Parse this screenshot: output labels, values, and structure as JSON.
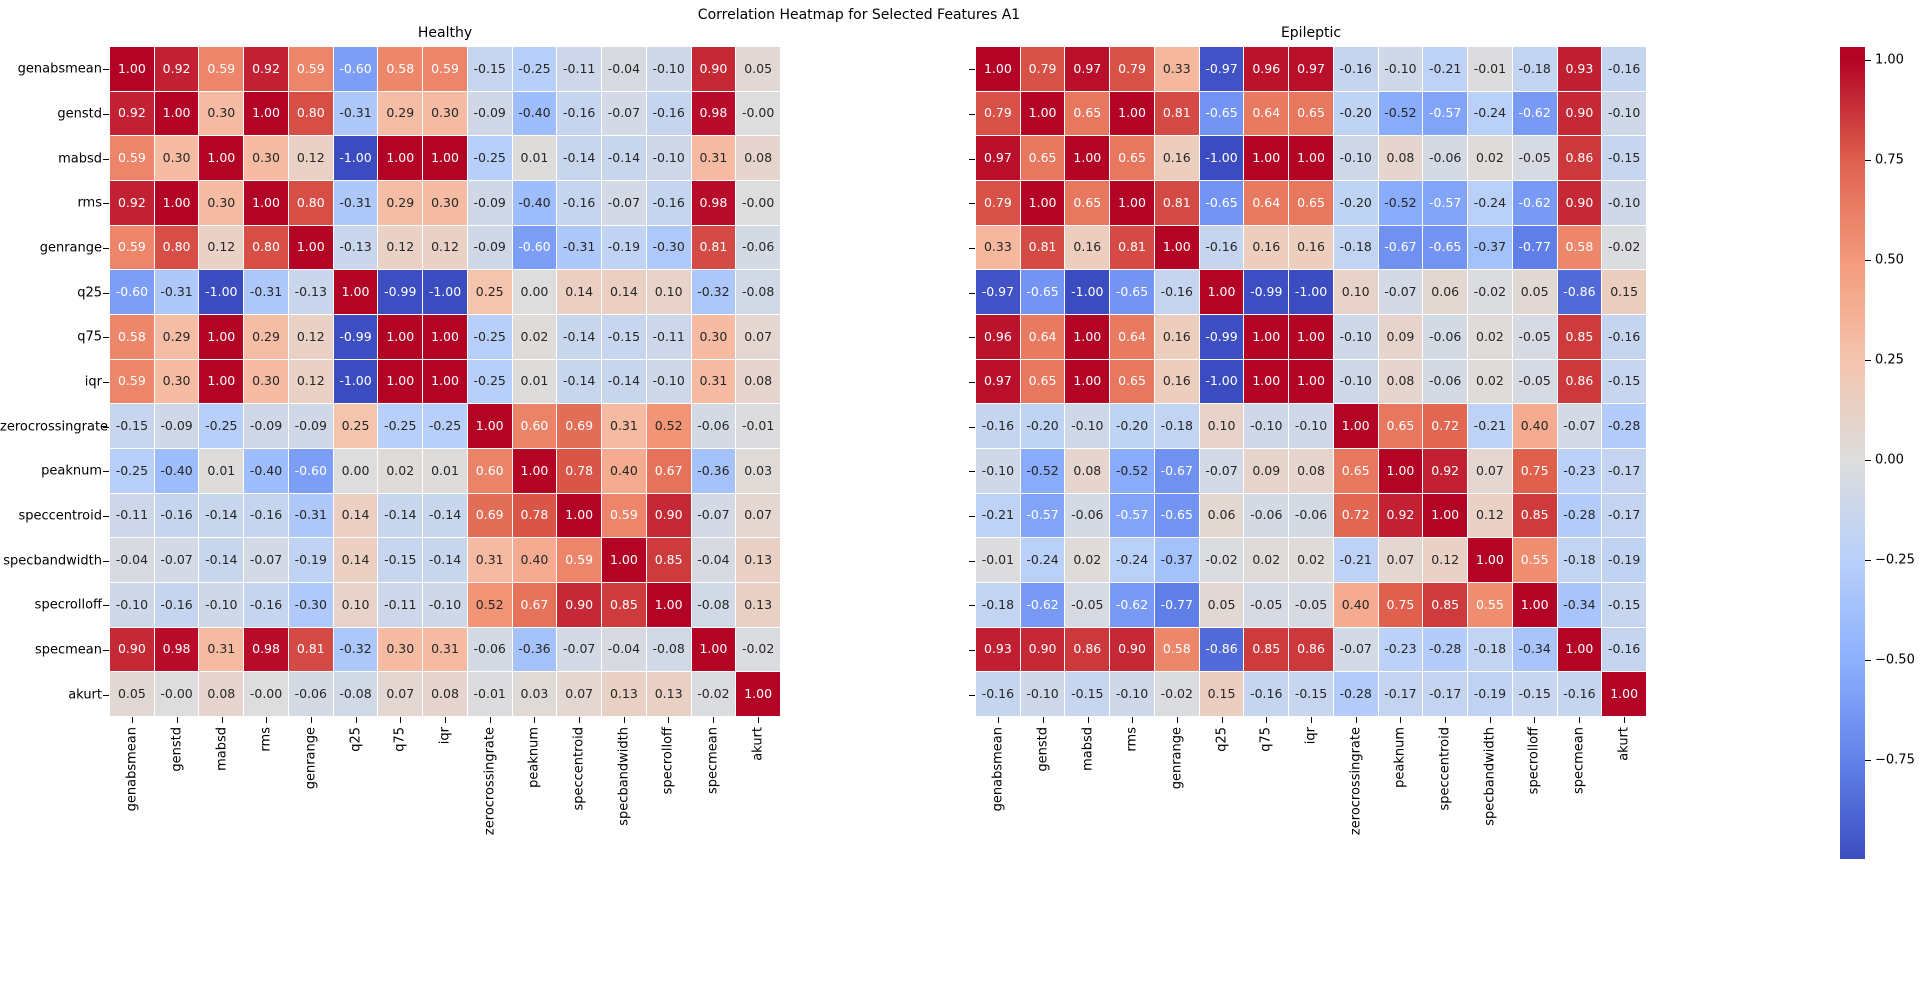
{
  "figure": {
    "title": "Correlation Heatmap for Selected Features A1"
  },
  "panels": [
    {
      "title": "Healthy"
    },
    {
      "title": "Epileptic"
    }
  ],
  "features": [
    "genabsmean",
    "genstd",
    "mabsd",
    "rms",
    "genrange",
    "q25",
    "q75",
    "iqr",
    "zerocrossingrate",
    "peaknum",
    "speccentroid",
    "specbandwidth",
    "specrolloff",
    "specmean",
    "akurt"
  ],
  "colors": {
    "background": "#ffffff",
    "cmap_name": "coolwarm",
    "cmap_max": "#b40426",
    "cmap_mid": "#dddddd",
    "cmap_min": "#3b4cc0",
    "annotation_dark": "#262626",
    "annotation_light": "#ffffff"
  },
  "colorbar": {
    "tick_values": [
      1.0,
      0.75,
      0.5,
      0.25,
      0.0,
      -0.25,
      -0.5,
      -0.75
    ],
    "tick_labels": [
      "1.00",
      "0.75",
      "0.50",
      "0.25",
      "0.00",
      "−0.25",
      "−0.50",
      "−0.75"
    ]
  },
  "chart_data": [
    {
      "type": "heatmap",
      "title": "Healthy",
      "colormap": "coolwarm",
      "vmin": -1,
      "vmax": 1,
      "annotation_format": ".2f",
      "labels": [
        "genabsmean",
        "genstd",
        "mabsd",
        "rms",
        "genrange",
        "q25",
        "q75",
        "iqr",
        "zerocrossingrate",
        "peaknum",
        "speccentroid",
        "specbandwidth",
        "specrolloff",
        "specmean",
        "akurt"
      ],
      "values": [
        [
          1.0,
          0.92,
          0.59,
          0.92,
          0.59,
          -0.6,
          0.58,
          0.59,
          -0.15,
          -0.25,
          -0.11,
          -0.04,
          -0.1,
          0.9,
          0.05
        ],
        [
          0.92,
          1.0,
          0.3,
          1.0,
          0.8,
          -0.31,
          0.29,
          0.3,
          -0.09,
          -0.4,
          -0.16,
          -0.07,
          -0.16,
          0.98,
          -0.0
        ],
        [
          0.59,
          0.3,
          1.0,
          0.3,
          0.12,
          -1.0,
          1.0,
          1.0,
          -0.25,
          0.01,
          -0.14,
          -0.14,
          -0.1,
          0.31,
          0.08
        ],
        [
          0.92,
          1.0,
          0.3,
          1.0,
          0.8,
          -0.31,
          0.29,
          0.3,
          -0.09,
          -0.4,
          -0.16,
          -0.07,
          -0.16,
          0.98,
          -0.0
        ],
        [
          0.59,
          0.8,
          0.12,
          0.8,
          1.0,
          -0.13,
          0.12,
          0.12,
          -0.09,
          -0.6,
          -0.31,
          -0.19,
          -0.3,
          0.81,
          -0.06
        ],
        [
          -0.6,
          -0.31,
          -1.0,
          -0.31,
          -0.13,
          1.0,
          -0.99,
          -1.0,
          0.25,
          0.0,
          0.14,
          0.14,
          0.1,
          -0.32,
          -0.08
        ],
        [
          0.58,
          0.29,
          1.0,
          0.29,
          0.12,
          -0.99,
          1.0,
          1.0,
          -0.25,
          0.02,
          -0.14,
          -0.15,
          -0.11,
          0.3,
          0.07
        ],
        [
          0.59,
          0.3,
          1.0,
          0.3,
          0.12,
          -1.0,
          1.0,
          1.0,
          -0.25,
          0.01,
          -0.14,
          -0.14,
          -0.1,
          0.31,
          0.08
        ],
        [
          -0.15,
          -0.09,
          -0.25,
          -0.09,
          -0.09,
          0.25,
          -0.25,
          -0.25,
          1.0,
          0.6,
          0.69,
          0.31,
          0.52,
          -0.06,
          -0.01
        ],
        [
          -0.25,
          -0.4,
          0.01,
          -0.4,
          -0.6,
          0.0,
          0.02,
          0.01,
          0.6,
          1.0,
          0.78,
          0.4,
          0.67,
          -0.36,
          0.03
        ],
        [
          -0.11,
          -0.16,
          -0.14,
          -0.16,
          -0.31,
          0.14,
          -0.14,
          -0.14,
          0.69,
          0.78,
          1.0,
          0.59,
          0.9,
          -0.07,
          0.07
        ],
        [
          -0.04,
          -0.07,
          -0.14,
          -0.07,
          -0.19,
          0.14,
          -0.15,
          -0.14,
          0.31,
          0.4,
          0.59,
          1.0,
          0.85,
          -0.04,
          0.13
        ],
        [
          -0.1,
          -0.16,
          -0.1,
          -0.16,
          -0.3,
          0.1,
          -0.11,
          -0.1,
          0.52,
          0.67,
          0.9,
          0.85,
          1.0,
          -0.08,
          0.13
        ],
        [
          0.9,
          0.98,
          0.31,
          0.98,
          0.81,
          -0.32,
          0.3,
          0.31,
          -0.06,
          -0.36,
          -0.07,
          -0.04,
          -0.08,
          1.0,
          -0.02
        ],
        [
          0.05,
          -0.0,
          0.08,
          -0.0,
          -0.06,
          -0.08,
          0.07,
          0.08,
          -0.01,
          0.03,
          0.07,
          0.13,
          0.13,
          -0.02,
          1.0
        ]
      ]
    },
    {
      "type": "heatmap",
      "title": "Epileptic",
      "colormap": "coolwarm",
      "vmin": -1,
      "vmax": 1,
      "annotation_format": ".2f",
      "labels": [
        "genabsmean",
        "genstd",
        "mabsd",
        "rms",
        "genrange",
        "q25",
        "q75",
        "iqr",
        "zerocrossingrate",
        "peaknum",
        "speccentroid",
        "specbandwidth",
        "specrolloff",
        "specmean",
        "akurt"
      ],
      "values": [
        [
          1.0,
          0.79,
          0.97,
          0.79,
          0.33,
          -0.97,
          0.96,
          0.97,
          -0.16,
          -0.1,
          -0.21,
          -0.01,
          -0.18,
          0.93,
          -0.16
        ],
        [
          0.79,
          1.0,
          0.65,
          1.0,
          0.81,
          -0.65,
          0.64,
          0.65,
          -0.2,
          -0.52,
          -0.57,
          -0.24,
          -0.62,
          0.9,
          -0.1
        ],
        [
          0.97,
          0.65,
          1.0,
          0.65,
          0.16,
          -1.0,
          1.0,
          1.0,
          -0.1,
          0.08,
          -0.06,
          0.02,
          -0.05,
          0.86,
          -0.15
        ],
        [
          0.79,
          1.0,
          0.65,
          1.0,
          0.81,
          -0.65,
          0.64,
          0.65,
          -0.2,
          -0.52,
          -0.57,
          -0.24,
          -0.62,
          0.9,
          -0.1
        ],
        [
          0.33,
          0.81,
          0.16,
          0.81,
          1.0,
          -0.16,
          0.16,
          0.16,
          -0.18,
          -0.67,
          -0.65,
          -0.37,
          -0.77,
          0.58,
          -0.02
        ],
        [
          -0.97,
          -0.65,
          -1.0,
          -0.65,
          -0.16,
          1.0,
          -0.99,
          -1.0,
          0.1,
          -0.07,
          0.06,
          -0.02,
          0.05,
          -0.86,
          0.15
        ],
        [
          0.96,
          0.64,
          1.0,
          0.64,
          0.16,
          -0.99,
          1.0,
          1.0,
          -0.1,
          0.09,
          -0.06,
          0.02,
          -0.05,
          0.85,
          -0.16
        ],
        [
          0.97,
          0.65,
          1.0,
          0.65,
          0.16,
          -1.0,
          1.0,
          1.0,
          -0.1,
          0.08,
          -0.06,
          0.02,
          -0.05,
          0.86,
          -0.15
        ],
        [
          -0.16,
          -0.2,
          -0.1,
          -0.2,
          -0.18,
          0.1,
          -0.1,
          -0.1,
          1.0,
          0.65,
          0.72,
          -0.21,
          0.4,
          -0.07,
          -0.28
        ],
        [
          -0.1,
          -0.52,
          0.08,
          -0.52,
          -0.67,
          -0.07,
          0.09,
          0.08,
          0.65,
          1.0,
          0.92,
          0.07,
          0.75,
          -0.23,
          -0.17
        ],
        [
          -0.21,
          -0.57,
          -0.06,
          -0.57,
          -0.65,
          0.06,
          -0.06,
          -0.06,
          0.72,
          0.92,
          1.0,
          0.12,
          0.85,
          -0.28,
          -0.17
        ],
        [
          -0.01,
          -0.24,
          0.02,
          -0.24,
          -0.37,
          -0.02,
          0.02,
          0.02,
          -0.21,
          0.07,
          0.12,
          1.0,
          0.55,
          -0.18,
          -0.19
        ],
        [
          -0.18,
          -0.62,
          -0.05,
          -0.62,
          -0.77,
          0.05,
          -0.05,
          -0.05,
          0.4,
          0.75,
          0.85,
          0.55,
          1.0,
          -0.34,
          -0.15
        ],
        [
          0.93,
          0.9,
          0.86,
          0.9,
          0.58,
          -0.86,
          0.85,
          0.86,
          -0.07,
          -0.23,
          -0.28,
          -0.18,
          -0.34,
          1.0,
          -0.16
        ],
        [
          -0.16,
          -0.1,
          -0.15,
          -0.1,
          -0.02,
          0.15,
          -0.16,
          -0.15,
          -0.28,
          -0.17,
          -0.17,
          -0.19,
          -0.15,
          -0.16,
          1.0
        ]
      ]
    }
  ]
}
